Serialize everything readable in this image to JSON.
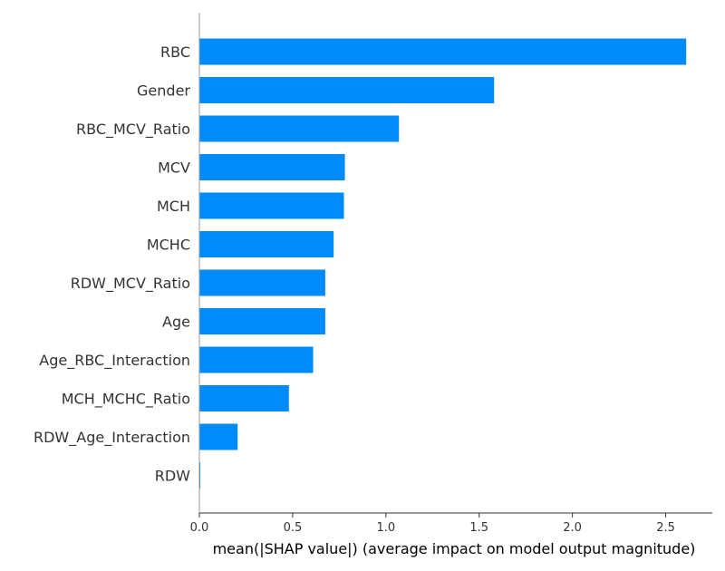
{
  "chart_data": {
    "type": "bar",
    "orientation": "horizontal",
    "categories": [
      "RBC",
      "Gender",
      "RBC_MCV_Ratio",
      "MCV",
      "MCH",
      "MCHC",
      "RDW_MCV_Ratio",
      "Age",
      "Age_RBC_Interaction",
      "MCH_MCHC_Ratio",
      "RDW_Age_Interaction",
      "RDW"
    ],
    "values": [
      2.61,
      1.58,
      1.07,
      0.78,
      0.775,
      0.72,
      0.675,
      0.675,
      0.61,
      0.48,
      0.205,
      0.005
    ],
    "xlabel": "mean(|SHAP value|) (average impact on model output magnitude)",
    "ylabel": "",
    "xlim": [
      0,
      2.75
    ],
    "x_ticks": [
      "0.0",
      "0.5",
      "1.0",
      "1.5",
      "2.0",
      "2.5"
    ],
    "grid": false,
    "bar_color": "#008bfb",
    "axis_color": "#999999"
  }
}
